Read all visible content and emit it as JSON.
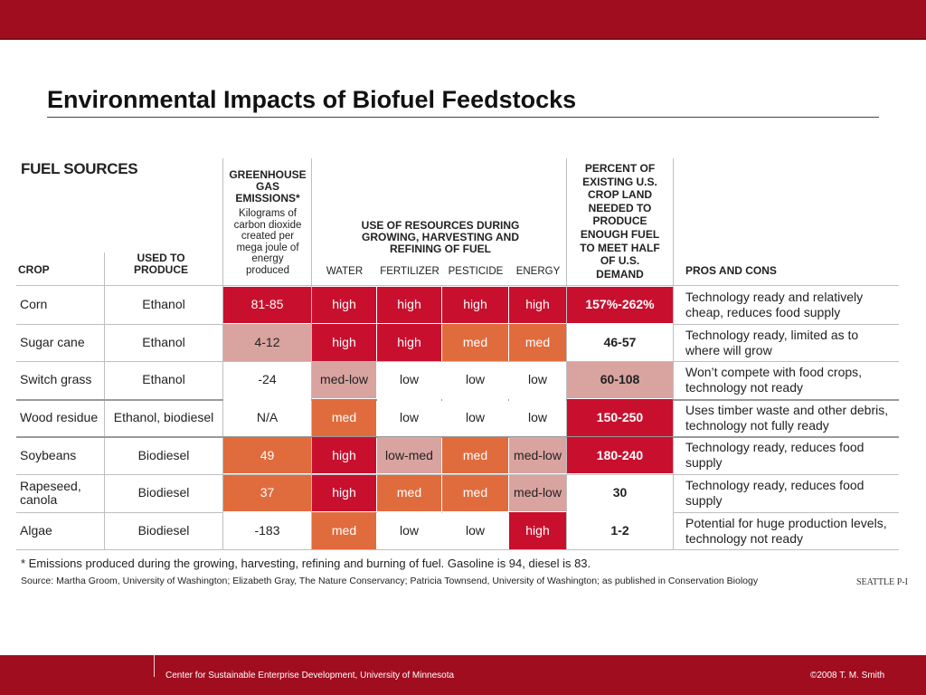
{
  "slide": {
    "title": "Environmental Impacts of Biofuel Feedstocks",
    "footer_left": "Center for Sustainable Enterprise Development, University of Minnesota",
    "footer_right": "©2008 T. M. Smith"
  },
  "figure": {
    "heading": "FUEL SOURCES",
    "headers": {
      "crop": "CROP",
      "used_to_produce": [
        "USED TO",
        "PRODUCE"
      ],
      "ghg_bold": [
        "GREENHOUSE",
        "GAS",
        "EMISSIONS*"
      ],
      "ghg_sub": [
        "Kilograms of",
        "carbon dioxide",
        "created per",
        "mega joule of",
        "energy",
        "produced"
      ],
      "resources": [
        "USE OF RESOURCES DURING",
        "GROWING, HARVESTING AND",
        "REFINING OF FUEL"
      ],
      "water": "WATER",
      "fertilizer": "FERTILIZER",
      "pesticide": "PESTICIDE",
      "energy": "ENERGY",
      "percent": [
        "PERCENT OF",
        "EXISTING U.S.",
        "CROP LAND",
        "NEEDED TO",
        "PRODUCE",
        "ENOUGH FUEL",
        "TO MEET HALF",
        "OF U.S.",
        "DEMAND"
      ],
      "pros_cons": "PROS AND CONS"
    },
    "colors": {
      "dark_red": "#c8102e",
      "orange": "#e06c3e",
      "pink": "#d9a3a0",
      "white": "#ffffff"
    },
    "rows": [
      {
        "crop": "Corn",
        "produce": "Ethanol",
        "ghg": "81-85",
        "ghg_color": "dark_red",
        "water": "high",
        "water_color": "dark_red",
        "fertilizer": "high",
        "fertilizer_color": "dark_red",
        "pesticide": "high",
        "pesticide_color": "dark_red",
        "energy": "high",
        "energy_color": "dark_red",
        "percent": "157%-262%",
        "percent_color": "dark_red",
        "pros": [
          "Technology ready and relatively",
          "cheap, reduces food supply"
        ]
      },
      {
        "crop": "Sugar cane",
        "produce": "Ethanol",
        "ghg": "4-12",
        "ghg_color": "pink",
        "water": "high",
        "water_color": "dark_red",
        "fertilizer": "high",
        "fertilizer_color": "dark_red",
        "pesticide": "med",
        "pesticide_color": "orange",
        "energy": "med",
        "energy_color": "orange",
        "percent": "46-57",
        "percent_color": "white",
        "pros": [
          "Technology ready, limited as to",
          "where will grow"
        ]
      },
      {
        "crop": "Switch grass",
        "produce": "Ethanol",
        "ghg": "-24",
        "ghg_color": "white",
        "water": "med-low",
        "water_color": "pink",
        "fertilizer": "low",
        "fertilizer_color": "white",
        "pesticide": "low",
        "pesticide_color": "white",
        "energy": "low",
        "energy_color": "white",
        "percent": "60-108",
        "percent_color": "pink",
        "pros": [
          "Won’t compete with food crops,",
          "technology not ready"
        ]
      },
      {
        "crop": "Wood residue",
        "produce": "Ethanol, biodiesel",
        "ghg": "N/A",
        "ghg_color": "white",
        "water": "med",
        "water_color": "orange",
        "fertilizer": "low",
        "fertilizer_color": "white",
        "pesticide": "low",
        "pesticide_color": "white",
        "energy": "low",
        "energy_color": "white",
        "percent": "150-250",
        "percent_color": "dark_red",
        "pros": [
          "Uses timber waste and other debris,",
          "technology not fully ready"
        ]
      },
      {
        "crop": "Soybeans",
        "produce": "Biodiesel",
        "ghg": "49",
        "ghg_color": "orange",
        "water": "high",
        "water_color": "dark_red",
        "fertilizer": "low-med",
        "fertilizer_color": "pink",
        "pesticide": "med",
        "pesticide_color": "orange",
        "energy": "med-low",
        "energy_color": "pink",
        "percent": "180-240",
        "percent_color": "dark_red",
        "pros": [
          "Technology ready, reduces food",
          "supply"
        ]
      },
      {
        "crop": "Rapeseed,\ncanola",
        "produce": "Biodiesel",
        "ghg": "37",
        "ghg_color": "orange",
        "water": "high",
        "water_color": "dark_red",
        "fertilizer": "med",
        "fertilizer_color": "orange",
        "pesticide": "med",
        "pesticide_color": "orange",
        "energy": "med-low",
        "energy_color": "pink",
        "percent": "30",
        "percent_color": "white",
        "pros": [
          "Technology ready, reduces food",
          "supply"
        ]
      },
      {
        "crop": "Algae",
        "produce": "Biodiesel",
        "ghg": "-183",
        "ghg_color": "white",
        "water": "med",
        "water_color": "orange",
        "fertilizer": "low",
        "fertilizer_color": "white",
        "pesticide": "low",
        "pesticide_color": "white",
        "energy": "high",
        "energy_color": "dark_red",
        "percent": "1-2",
        "percent_color": "white",
        "pros": [
          "Potential for huge production levels,",
          "technology not ready"
        ]
      }
    ],
    "footnote": "* Emissions produced during the growing, harvesting, refining and burning of fuel. Gasoline is 94, diesel is 83.",
    "source": "Source: Martha Groom, University of Washington; Elizabeth Gray, The Nature Conservancy; Patricia Townsend, University of Washington; as published in Conservation Biology",
    "credit": "SEATTLE P-I"
  }
}
